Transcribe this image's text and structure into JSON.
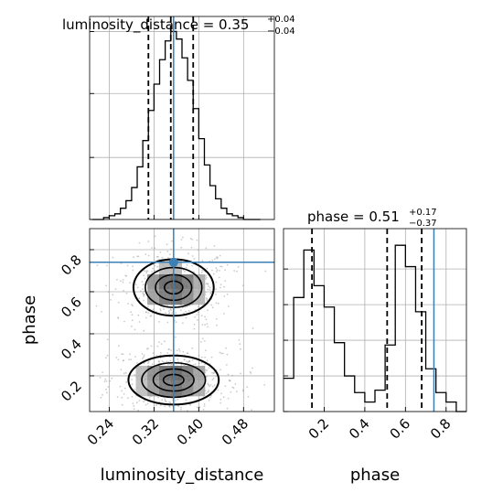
{
  "chart_data": {
    "type": "corner",
    "parameters": [
      "luminosity_distance",
      "phase"
    ],
    "truths": {
      "luminosity_distance": 0.355,
      "phase": 0.74
    },
    "titles": {
      "luminosity_distance": {
        "prefix": "luminosity_distance = 0.35",
        "plus": "+0.04",
        "minus": "−0.04"
      },
      "phase": {
        "prefix": "phase = 0.51",
        "plus": "+0.17",
        "minus": "−0.37"
      }
    },
    "axes": {
      "luminosity_distance": {
        "label": "luminosity_distance",
        "range": [
          0.205,
          0.535
        ],
        "ticks": [
          0.24,
          0.32,
          0.4,
          0.48
        ],
        "tick_labels": [
          "0.24",
          "0.32",
          "0.40",
          "0.48"
        ]
      },
      "phase": {
        "label": "phase",
        "range": [
          0.03,
          0.9
        ],
        "ticks": [
          0.2,
          0.4,
          0.6,
          0.8
        ],
        "tick_labels": [
          "0.2",
          "0.4",
          "0.6",
          "0.8"
        ]
      }
    },
    "quantiles": {
      "luminosity_distance": [
        0.31,
        0.35,
        0.39
      ],
      "phase": [
        0.14,
        0.51,
        0.68
      ]
    },
    "hist_luminosity_distance": {
      "edges": [
        0.21,
        0.22,
        0.23,
        0.24,
        0.25,
        0.26,
        0.27,
        0.28,
        0.29,
        0.3,
        0.31,
        0.32,
        0.33,
        0.34,
        0.35,
        0.36,
        0.37,
        0.38,
        0.39,
        0.4,
        0.41,
        0.42,
        0.43,
        0.44,
        0.45,
        0.46,
        0.47,
        0.48,
        0.49,
        0.5,
        0.51
      ],
      "counts": [
        0,
        0,
        1,
        2,
        3,
        6,
        10,
        17,
        28,
        42,
        58,
        72,
        85,
        95,
        100,
        96,
        86,
        74,
        59,
        43,
        29,
        18,
        11,
        6,
        3,
        2,
        1,
        0,
        0,
        0
      ]
    },
    "hist_phase": {
      "edges": [
        0.0,
        0.05,
        0.1,
        0.15,
        0.2,
        0.25,
        0.3,
        0.35,
        0.4,
        0.45,
        0.5,
        0.55,
        0.6,
        0.65,
        0.7,
        0.75,
        0.8,
        0.85,
        0.9
      ],
      "counts": [
        14,
        48,
        68,
        53,
        44,
        29,
        15,
        8,
        4,
        9,
        28,
        70,
        61,
        42,
        18,
        8,
        4,
        0
      ]
    },
    "density_2d": {
      "x": "luminosity_distance",
      "y": "phase",
      "modes": [
        {
          "x": 0.355,
          "y": 0.62,
          "sx": 0.04,
          "sy": 0.075
        },
        {
          "x": 0.355,
          "y": 0.18,
          "sx": 0.045,
          "sy": 0.065
        }
      ],
      "contour_levels": [
        0.2,
        0.45,
        0.72,
        0.92
      ]
    }
  }
}
